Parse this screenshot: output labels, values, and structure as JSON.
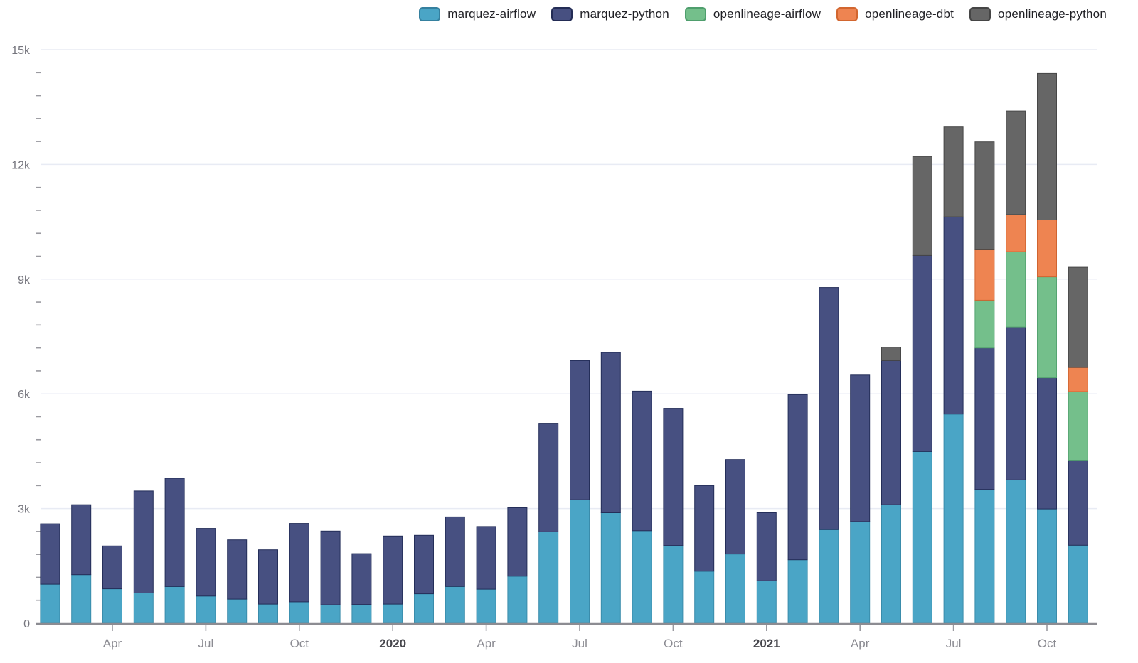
{
  "page": {
    "background": "#ffffff"
  },
  "legend": {
    "items": [
      {
        "label": "marquez-airflow",
        "color": "#4aa5c6",
        "border": "#35809f"
      },
      {
        "label": "marquez-python",
        "color": "#475081",
        "border": "#232c55"
      },
      {
        "label": "openlineage-airflow",
        "color": "#74bf8b",
        "border": "#4f9e6d"
      },
      {
        "label": "openlineage-dbt",
        "color": "#ee8451",
        "border": "#d2662f"
      },
      {
        "label": "openlineage-python",
        "color": "#666666",
        "border": "#454545"
      }
    ]
  },
  "chart_data": {
    "type": "bar",
    "stacked": true,
    "title": "",
    "xlabel": "",
    "ylabel": "",
    "ylim": [
      0,
      15000
    ],
    "y_tick_values": [
      0,
      3000,
      6000,
      9000,
      12000,
      15000
    ],
    "y_tick_labels": [
      "0",
      "3k",
      "6k",
      "9k",
      "12k",
      "15k"
    ],
    "y_minor_step": 600,
    "grid": "horizontal-major",
    "legend_position": "top",
    "x": [
      "2019-02",
      "2019-03",
      "2019-04",
      "2019-05",
      "2019-06",
      "2019-07",
      "2019-08",
      "2019-09",
      "2019-10",
      "2019-11",
      "2019-12",
      "2020-01",
      "2020-02",
      "2020-03",
      "2020-04",
      "2020-05",
      "2020-06",
      "2020-07",
      "2020-08",
      "2020-09",
      "2020-10",
      "2020-11",
      "2020-12",
      "2021-01",
      "2021-02",
      "2021-03",
      "2021-04",
      "2021-05",
      "2021-06",
      "2021-07",
      "2021-08",
      "2021-09",
      "2021-10",
      "2021-11"
    ],
    "x_tick_labels": [
      {
        "index": 2,
        "label": "Apr",
        "bold": false
      },
      {
        "index": 5,
        "label": "Jul",
        "bold": false
      },
      {
        "index": 8,
        "label": "Oct",
        "bold": false
      },
      {
        "index": 11,
        "label": "2020",
        "bold": true
      },
      {
        "index": 14,
        "label": "Apr",
        "bold": false
      },
      {
        "index": 17,
        "label": "Jul",
        "bold": false
      },
      {
        "index": 20,
        "label": "Oct",
        "bold": false
      },
      {
        "index": 23,
        "label": "2021",
        "bold": true
      },
      {
        "index": 26,
        "label": "Apr",
        "bold": false
      },
      {
        "index": 29,
        "label": "Jul",
        "bold": false
      },
      {
        "index": 32,
        "label": "Oct",
        "bold": false
      }
    ],
    "series": [
      {
        "name": "marquez-airflow",
        "color": "#4aa5c6",
        "border": "#3a8cab",
        "values": [
          1020,
          1270,
          900,
          790,
          960,
          710,
          630,
          500,
          560,
          480,
          490,
          500,
          770,
          960,
          890,
          1230,
          2390,
          3230,
          2890,
          2420,
          2030,
          1360,
          1810,
          1110,
          1660,
          2450,
          2660,
          3100,
          4490,
          5470,
          3500,
          3750,
          2990,
          2040
        ]
      },
      {
        "name": "marquez-python",
        "color": "#475081",
        "border": "#242e59",
        "values": [
          1580,
          1830,
          1120,
          2670,
          2830,
          1770,
          1550,
          1420,
          2050,
          1930,
          1330,
          1780,
          1530,
          1820,
          1640,
          1790,
          2840,
          3640,
          4190,
          3650,
          3590,
          2240,
          2470,
          1780,
          4320,
          6330,
          3830,
          3770,
          5130,
          5160,
          3700,
          4000,
          3430,
          2210
        ]
      },
      {
        "name": "openlineage-airflow",
        "color": "#74bf8b",
        "border": "#55a471",
        "values": [
          0,
          0,
          0,
          0,
          0,
          0,
          0,
          0,
          0,
          0,
          0,
          0,
          0,
          0,
          0,
          0,
          0,
          0,
          0,
          0,
          0,
          0,
          0,
          0,
          0,
          0,
          0,
          0,
          0,
          0,
          1250,
          1970,
          2640,
          1810
        ]
      },
      {
        "name": "openlineage-dbt",
        "color": "#ee8451",
        "border": "#d06430",
        "values": [
          0,
          0,
          0,
          0,
          0,
          0,
          0,
          0,
          0,
          0,
          0,
          0,
          0,
          0,
          0,
          0,
          0,
          0,
          0,
          0,
          0,
          0,
          0,
          0,
          0,
          0,
          0,
          0,
          0,
          0,
          1320,
          970,
          1490,
          630
        ]
      },
      {
        "name": "openlineage-python",
        "color": "#666666",
        "border": "#474747",
        "values": [
          0,
          0,
          0,
          0,
          0,
          0,
          0,
          0,
          0,
          0,
          0,
          0,
          0,
          0,
          0,
          0,
          0,
          0,
          0,
          0,
          0,
          0,
          0,
          0,
          0,
          0,
          0,
          350,
          2590,
          2350,
          2820,
          2710,
          3830,
          2620
        ]
      }
    ]
  },
  "axis_colors": {
    "gridline": "#e8ebf4",
    "baseline": "#8c8c92",
    "tick": "#9a9aa0",
    "y_label": "#75757d",
    "x_label": "#8b8b92",
    "x_label_bold": "#47474d"
  }
}
